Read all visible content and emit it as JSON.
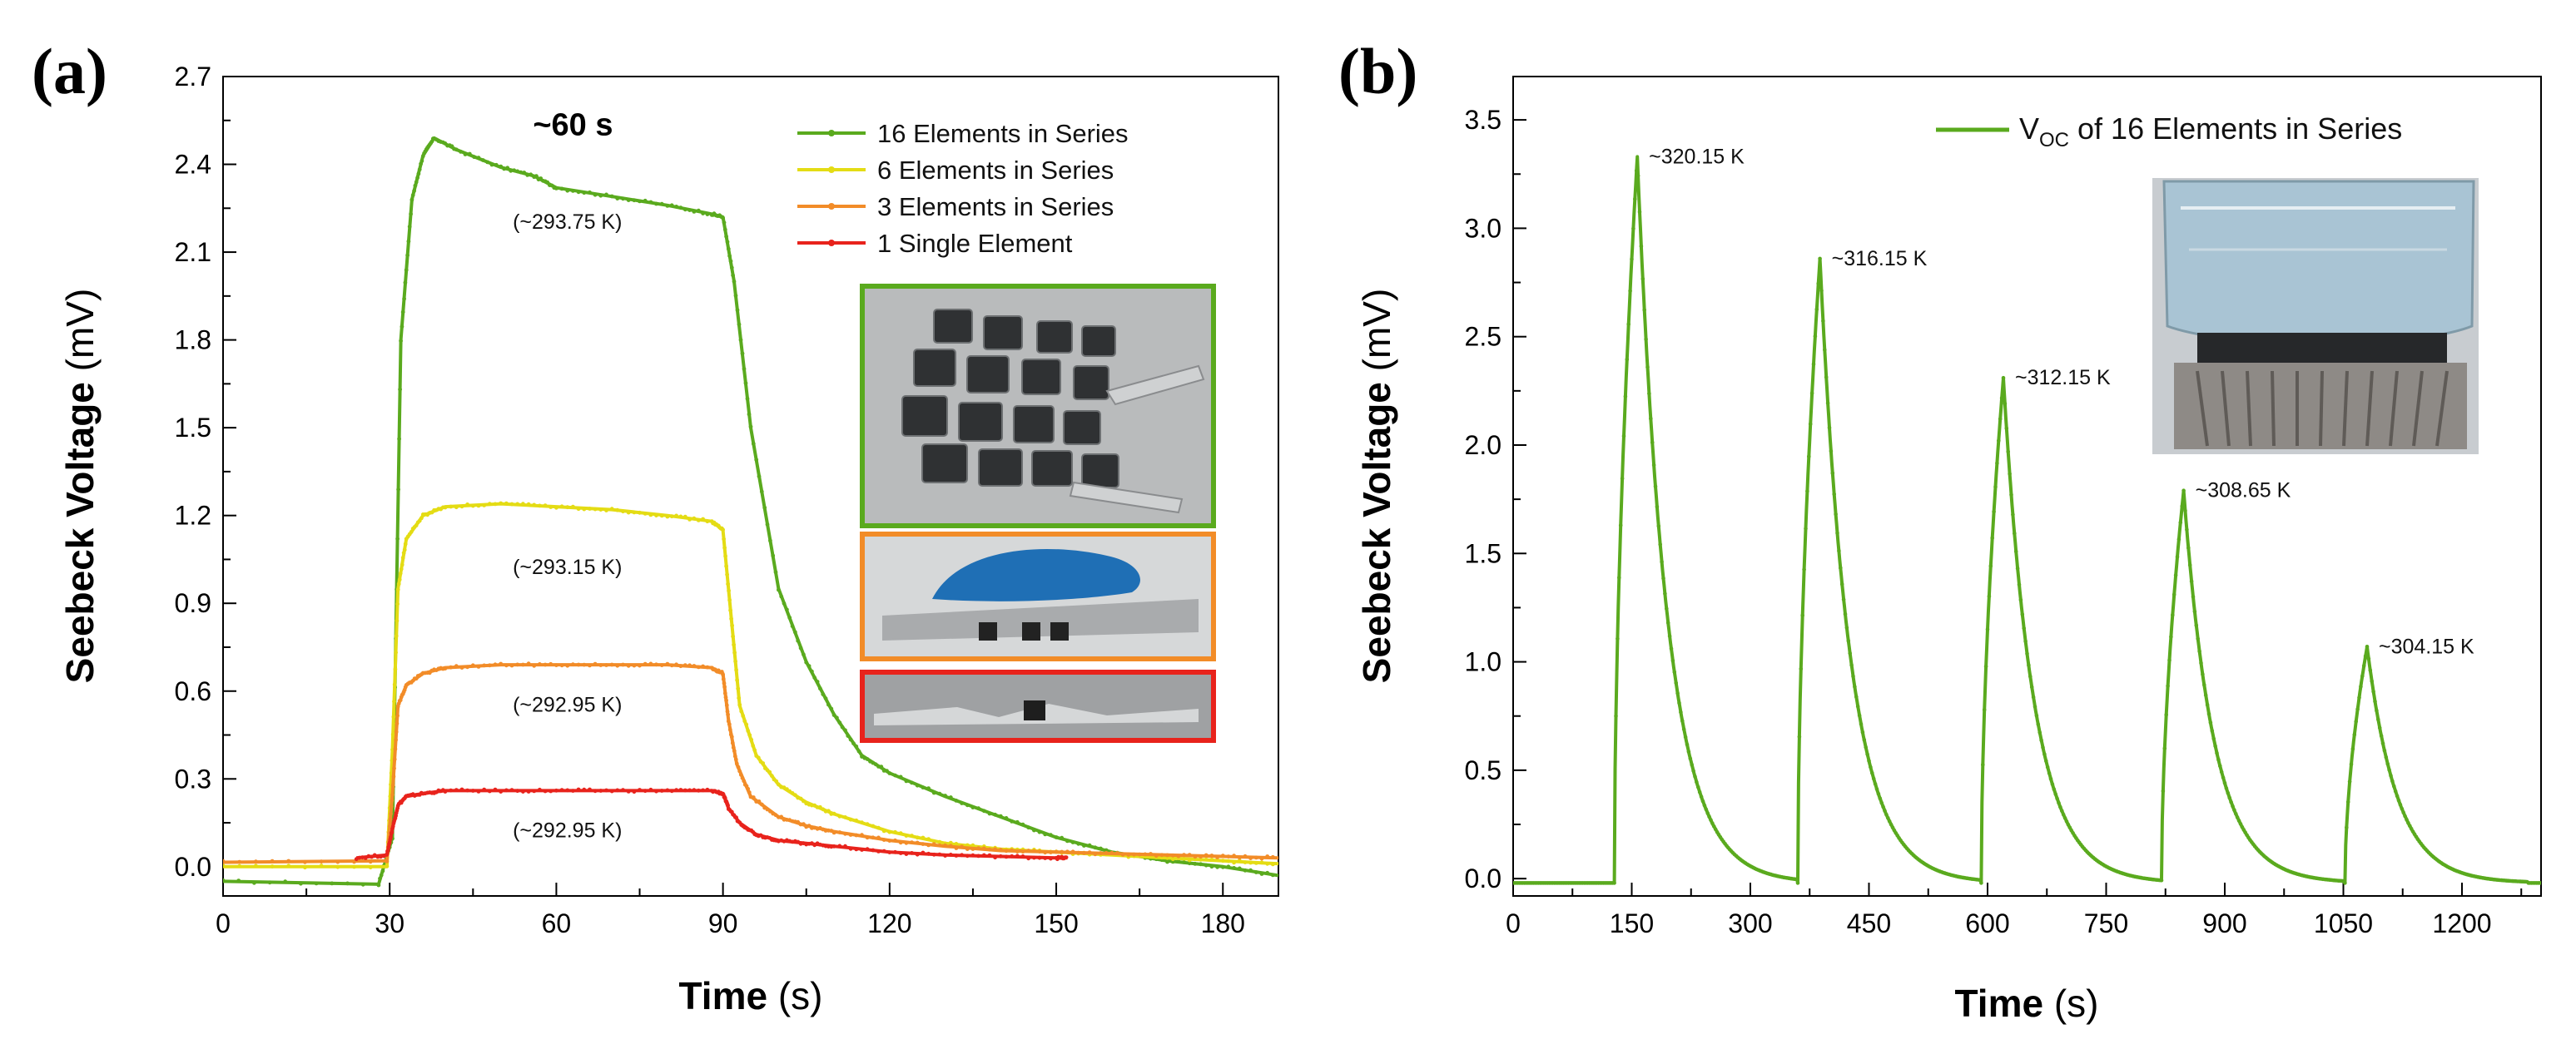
{
  "chart_data": [
    {
      "panel": "(a)",
      "type": "line",
      "xlabel": "Time",
      "xunit": "(s)",
      "ylabel": "Seebeck Voltage",
      "yunit": "(mV)",
      "xlim": [
        0,
        190
      ],
      "ylim": [
        -0.1,
        2.7
      ],
      "xticks": [
        0,
        30,
        60,
        90,
        120,
        150,
        180
      ],
      "yticks": [
        "0.0",
        "0.3",
        "0.6",
        "0.9",
        "1.2",
        "1.5",
        "1.8",
        "2.1",
        "2.4",
        "2.7"
      ],
      "legend_position": "top-right",
      "series": [
        {
          "name": "16 Elements in Series",
          "color": "#5aaa1e",
          "x": [
            0,
            28,
            30.5,
            32,
            34,
            36,
            38,
            42,
            50,
            56,
            60,
            70,
            80,
            88,
            90,
            92,
            95,
            100,
            105,
            110,
            115,
            120,
            130,
            140,
            150,
            160,
            170,
            180,
            190
          ],
          "y": [
            -0.05,
            -0.06,
            0.1,
            1.8,
            2.28,
            2.43,
            2.49,
            2.45,
            2.39,
            2.36,
            2.32,
            2.29,
            2.26,
            2.23,
            2.22,
            2.0,
            1.5,
            0.95,
            0.7,
            0.52,
            0.38,
            0.32,
            0.24,
            0.17,
            0.1,
            0.05,
            0.02,
            0.0,
            -0.03
          ]
        },
        {
          "name": "6 Elements in Series",
          "color": "#e4dc14",
          "x": [
            0,
            29.5,
            30.5,
            31.5,
            33,
            36,
            40,
            50,
            60,
            70,
            80,
            88,
            90,
            91.5,
            93,
            96,
            100,
            105,
            110,
            120,
            130,
            140,
            150,
            160,
            170,
            180,
            190
          ],
          "y": [
            0.0,
            0.0,
            0.4,
            0.95,
            1.12,
            1.2,
            1.23,
            1.24,
            1.23,
            1.22,
            1.2,
            1.18,
            1.15,
            0.85,
            0.55,
            0.38,
            0.28,
            0.22,
            0.18,
            0.12,
            0.08,
            0.06,
            0.05,
            0.04,
            0.03,
            0.02,
            0.01
          ]
        },
        {
          "name": "3 Elements in Series",
          "color": "#f28c28",
          "x": [
            0,
            29.5,
            30.5,
            31.5,
            33,
            36,
            40,
            50,
            60,
            70,
            80,
            88,
            90,
            91,
            92.5,
            95,
            100,
            105,
            110,
            120,
            130,
            140,
            150,
            160,
            170,
            180,
            190
          ],
          "y": [
            0.015,
            0.02,
            0.25,
            0.55,
            0.62,
            0.66,
            0.68,
            0.69,
            0.69,
            0.69,
            0.69,
            0.68,
            0.66,
            0.5,
            0.35,
            0.24,
            0.17,
            0.14,
            0.12,
            0.09,
            0.07,
            0.055,
            0.05,
            0.045,
            0.04,
            0.035,
            0.03
          ]
        },
        {
          "name": "1 Single Element",
          "color": "#e8231c",
          "x": [
            24,
            29.5,
            30.5,
            31.5,
            33,
            36,
            40,
            50,
            60,
            70,
            80,
            88,
            90,
            91,
            93,
            96,
            100,
            105,
            110,
            120,
            130,
            140,
            150,
            152
          ],
          "y": [
            0.03,
            0.04,
            0.13,
            0.21,
            0.24,
            0.25,
            0.26,
            0.26,
            0.26,
            0.26,
            0.26,
            0.26,
            0.25,
            0.2,
            0.15,
            0.11,
            0.09,
            0.08,
            0.07,
            0.05,
            0.04,
            0.035,
            0.03,
            0.03
          ]
        }
      ],
      "annotations": [
        {
          "text": "~60 s",
          "x": 63,
          "y": 2.5
        },
        {
          "text": "(~293.75 K)",
          "x": 62,
          "y": 2.18
        },
        {
          "text": "(~293.15 K)",
          "x": 62,
          "y": 1.0
        },
        {
          "text": "(~292.95 K)",
          "x": 62,
          "y": 0.53
        },
        {
          "text": "(~292.95 K)",
          "x": 62,
          "y": 0.1
        }
      ],
      "insets": [
        {
          "border_color": "#5aaa1e",
          "content": "photo"
        },
        {
          "border_color": "#f28c28",
          "content": "photo"
        },
        {
          "border_color": "#e8231c",
          "content": "photo"
        }
      ]
    },
    {
      "panel": "(b)",
      "type": "line",
      "xlabel": "Time",
      "xunit": "(s)",
      "ylabel": "Seebeck Voltage",
      "yunit": "(mV)",
      "xlim": [
        0,
        1300
      ],
      "ylim": [
        -0.08,
        3.7
      ],
      "xticks": [
        0,
        150,
        300,
        450,
        600,
        750,
        900,
        1050,
        1200
      ],
      "yticks": [
        "0.0",
        "0.5",
        "1.0",
        "1.5",
        "2.0",
        "2.5",
        "3.0",
        "3.5"
      ],
      "legend_position": "top-right",
      "legend": {
        "prefix": "V",
        "subscript": "OC",
        "suffix": " of 16 Elements in Series"
      },
      "series": [
        {
          "name": "VOC of 16 Elements in Series",
          "color": "#5aaa1e",
          "pulses": [
            {
              "start": 128,
              "peak_time": 157,
              "peak": 3.33,
              "label": "~320.15 K"
            },
            {
              "start": 360,
              "peak_time": 388,
              "peak": 2.86,
              "label": "~316.15 K"
            },
            {
              "start": 592,
              "peak_time": 620,
              "peak": 2.31,
              "label": "~312.15 K"
            },
            {
              "start": 820,
              "peak_time": 848,
              "peak": 1.79,
              "label": "~308.65 K"
            },
            {
              "start": 1052,
              "peak_time": 1080,
              "peak": 1.07,
              "label": "~304.15 K"
            }
          ],
          "baseline": -0.02,
          "x_end": 1300
        }
      ],
      "insets": [
        {
          "border_color": "none",
          "content": "photo"
        }
      ]
    }
  ]
}
